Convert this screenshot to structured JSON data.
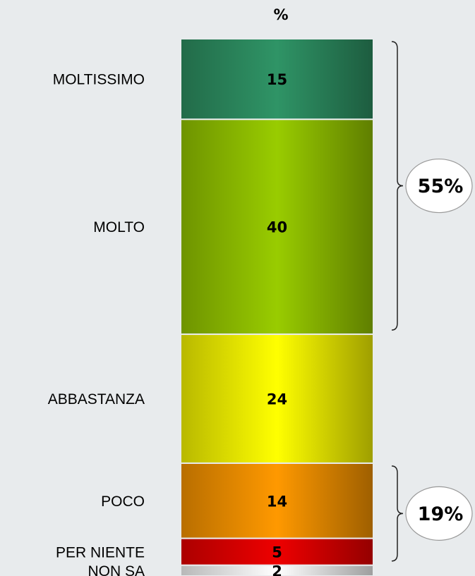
{
  "chart_data": {
    "type": "bar",
    "stacked": true,
    "y_label": "%",
    "categories": [
      "MOLTISSIMO",
      "MOLTO",
      "ABBASTANZA",
      "POCO",
      "PER NIENTE",
      "NON SA"
    ],
    "values": [
      15,
      40,
      24,
      14,
      5,
      2
    ],
    "colors": [
      "#2f9466",
      "#99cc00",
      "#ffff00",
      "#ff9900",
      "#ee0000",
      "#ffffff"
    ],
    "ylim": [
      0,
      100
    ],
    "annotations": [
      "55%",
      "19%"
    ]
  }
}
